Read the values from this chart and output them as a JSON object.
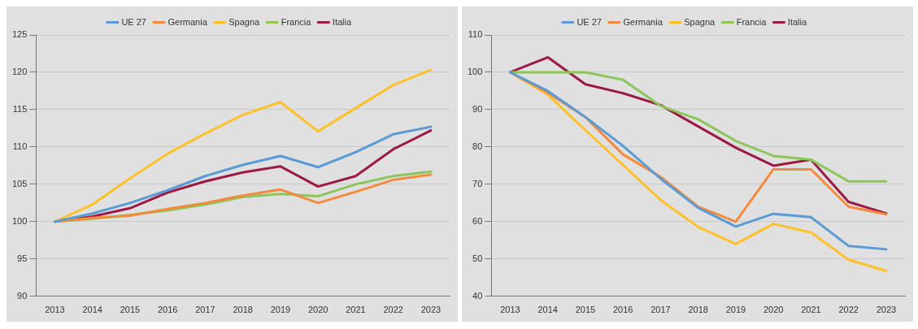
{
  "chart_data": [
    {
      "type": "line",
      "categories": [
        "2013",
        "2014",
        "2015",
        "2016",
        "2017",
        "2018",
        "2019",
        "2020",
        "2021",
        "2022",
        "2023"
      ],
      "series": [
        {
          "name": "UE 27",
          "color": "#5b9bd5",
          "values": [
            100,
            101.1,
            102.5,
            104.2,
            106.1,
            107.6,
            108.8,
            107.3,
            109.3,
            111.7,
            112.7
          ]
        },
        {
          "name": "Germania",
          "color": "#f58a3c",
          "values": [
            100,
            100.5,
            100.8,
            101.7,
            102.5,
            103.5,
            104.3,
            102.5,
            104,
            105.6,
            106.3
          ]
        },
        {
          "name": "Spagna",
          "color": "#ffc12a",
          "values": [
            100,
            102.3,
            105.8,
            109.1,
            111.8,
            114.3,
            116,
            112.1,
            115.2,
            118.3,
            120.3
          ]
        },
        {
          "name": "Francia",
          "color": "#8cc65a",
          "values": [
            100,
            100.4,
            100.9,
            101.5,
            102.3,
            103.3,
            103.7,
            103.4,
            105,
            106.1,
            106.7
          ]
        },
        {
          "name": "Italia",
          "color": "#9b1a46",
          "values": [
            100,
            100.7,
            101.8,
            103.9,
            105.4,
            106.6,
            107.4,
            104.7,
            106.1,
            109.7,
            112.2
          ]
        }
      ],
      "ylim": [
        90,
        125
      ],
      "yticks": [
        90,
        95,
        100,
        105,
        110,
        115,
        120,
        125
      ],
      "grid": "y",
      "legend": "top",
      "marker": "none",
      "line_style": "solid"
    },
    {
      "type": "line",
      "categories": [
        "2013",
        "2014",
        "2015",
        "2016",
        "2017",
        "2018",
        "2019",
        "2020",
        "2021",
        "2022",
        "2023"
      ],
      "series": [
        {
          "name": "UE 27",
          "color": "#5b9bd5",
          "values": [
            100,
            95,
            88,
            80.3,
            71.5,
            63.7,
            58.7,
            62.1,
            61.2,
            53.5,
            52.6
          ]
        },
        {
          "name": "Germania",
          "color": "#f58a3c",
          "values": [
            100,
            94.5,
            88,
            78,
            72,
            64,
            60,
            74,
            74,
            64,
            62
          ]
        },
        {
          "name": "Spagna",
          "color": "#ffc12a",
          "values": [
            100,
            94,
            84.5,
            75.2,
            65.8,
            58.6,
            54,
            59.4,
            57.1,
            49.8,
            46.8
          ]
        },
        {
          "name": "Francia",
          "color": "#8cc65a",
          "values": [
            100,
            100,
            100,
            98,
            91,
            87.4,
            81.6,
            77.6,
            76.6,
            70.8,
            70.8
          ]
        },
        {
          "name": "Italia",
          "color": "#9b1a46",
          "values": [
            100,
            104,
            96.8,
            94.4,
            91.2,
            85.5,
            79.8,
            75,
            76.6,
            65.3,
            62.2
          ]
        }
      ],
      "ylim": [
        40,
        110
      ],
      "yticks": [
        40,
        50,
        60,
        70,
        80,
        90,
        100,
        110
      ],
      "grid": "y",
      "legend": "top",
      "marker": "none",
      "line_style": "solid"
    }
  ]
}
